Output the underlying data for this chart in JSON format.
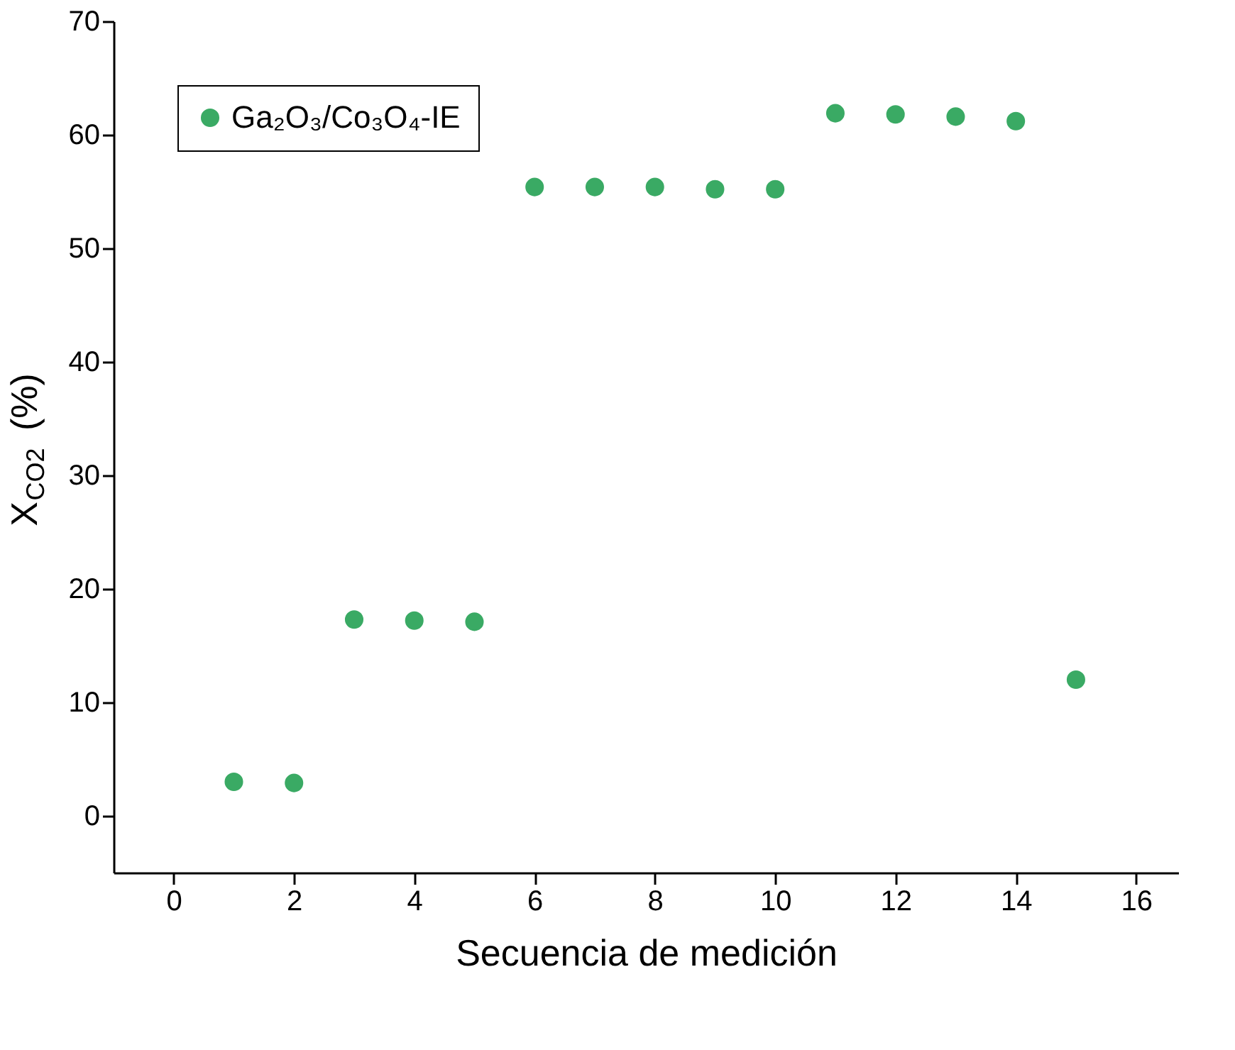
{
  "chart_data": {
    "type": "scatter",
    "xlabel": "Secuencia de medición",
    "ylabel": "X$_{CO2}$ (%)",
    "x": [
      1,
      2,
      3,
      4,
      5,
      6,
      7,
      8,
      9,
      10,
      11,
      12,
      13,
      14,
      15
    ],
    "series": [
      {
        "name": "Ga₂O₃/Co₃O₄-IE",
        "color": "#3aaa64",
        "values": [
          3.0,
          2.9,
          17.3,
          17.2,
          17.1,
          55.4,
          55.4,
          55.4,
          55.2,
          55.2,
          61.9,
          61.8,
          61.6,
          61.2,
          12.0
        ]
      }
    ],
    "xlim": [
      -1,
      16.7
    ],
    "xticks": [
      0,
      2,
      4,
      6,
      8,
      10,
      12,
      14,
      16
    ],
    "ylim": [
      -5,
      70
    ],
    "yticks": [
      0,
      10,
      20,
      30,
      40,
      50,
      60,
      70
    ],
    "grid": false,
    "legend": "top left",
    "marker": "circle"
  }
}
